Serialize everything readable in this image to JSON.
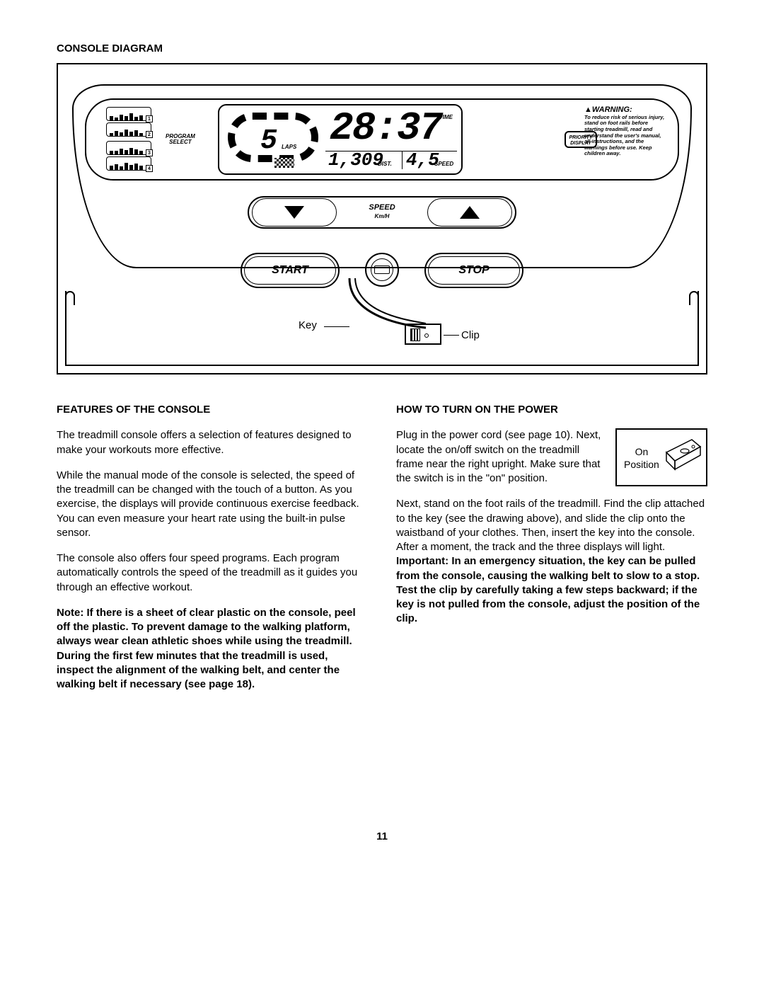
{
  "section_title": "CONSOLE DIAGRAM",
  "programs": {
    "label_line1": "PROGRAM",
    "label_line2": "SELECT",
    "items": [
      {
        "num": "1",
        "bars": [
          6,
          4,
          8,
          6,
          10,
          5,
          7
        ]
      },
      {
        "num": "2",
        "bars": [
          4,
          7,
          5,
          9,
          6,
          8,
          4
        ]
      },
      {
        "num": "3",
        "bars": [
          5,
          5,
          8,
          6,
          9,
          7,
          5
        ]
      },
      {
        "num": "4",
        "bars": [
          6,
          8,
          5,
          10,
          7,
          9,
          6
        ]
      }
    ]
  },
  "priority": {
    "line1": "PRIORITY",
    "line2": "DISPLAY"
  },
  "lcd": {
    "laps": "5",
    "laps_label": "LAPS",
    "time": "28:37",
    "time_label": "TIME",
    "dist": "1,309",
    "dist_label": "DIST.",
    "speed": "4,5",
    "speed_label": "SPEED"
  },
  "warning": {
    "header": "WARNING:",
    "body": "To reduce risk of serious injury, stand on foot rails before starting treadmill, read and understand the user's manual, all instructions, and the warnings before use. Keep children away."
  },
  "speed_button": {
    "label": "SPEED",
    "sub": "Km/H"
  },
  "start_label": "START",
  "stop_label": "STOP",
  "key_label": "Key",
  "clip_label": "Clip",
  "features": {
    "title": "FEATURES OF THE CONSOLE",
    "p1": "The treadmill console offers a selection of features designed to make your workouts more effective.",
    "p2": "While the manual mode of the console is selected, the speed of the treadmill can be changed with the touch of a button. As you exercise, the displays will provide continuous exercise feedback. You can even measure your heart rate using the built-in pulse sensor.",
    "p3": "The console also offers four speed programs. Each program automatically controls the speed of the treadmill as it guides you through an effective workout.",
    "note": "Note: If there is a sheet of clear plastic on the console, peel off the plastic. To prevent damage to the walking platform, always wear clean athletic shoes while using the treadmill. During the first few minutes that the treadmill is used, inspect the alignment of the walking belt, and center the walking belt if necessary (see page 18)."
  },
  "power": {
    "title": "HOW TO TURN ON THE POWER",
    "switch_label": "On\nPosition",
    "p1": "Plug in the power cord (see page 10). Next, locate the on/off switch on the treadmill frame near the right upright. Make sure that the switch is in the \"on\" position.",
    "p2a": "Next, stand on the foot rails of the treadmill. Find the clip attached to the key (see the drawing above), and slide the clip onto the waistband of your clothes. Then, insert the key into the console. After a moment, the track and the three displays will light. ",
    "p2b": "Important: In an emergency situation, the key can be pulled from the console, causing the walking belt to slow to a stop. Test the clip by carefully taking a few steps backward; if the key is not pulled from the console, adjust the position of the clip."
  },
  "page_number": "11",
  "colors": {
    "fg": "#000000",
    "bg": "#ffffff"
  }
}
